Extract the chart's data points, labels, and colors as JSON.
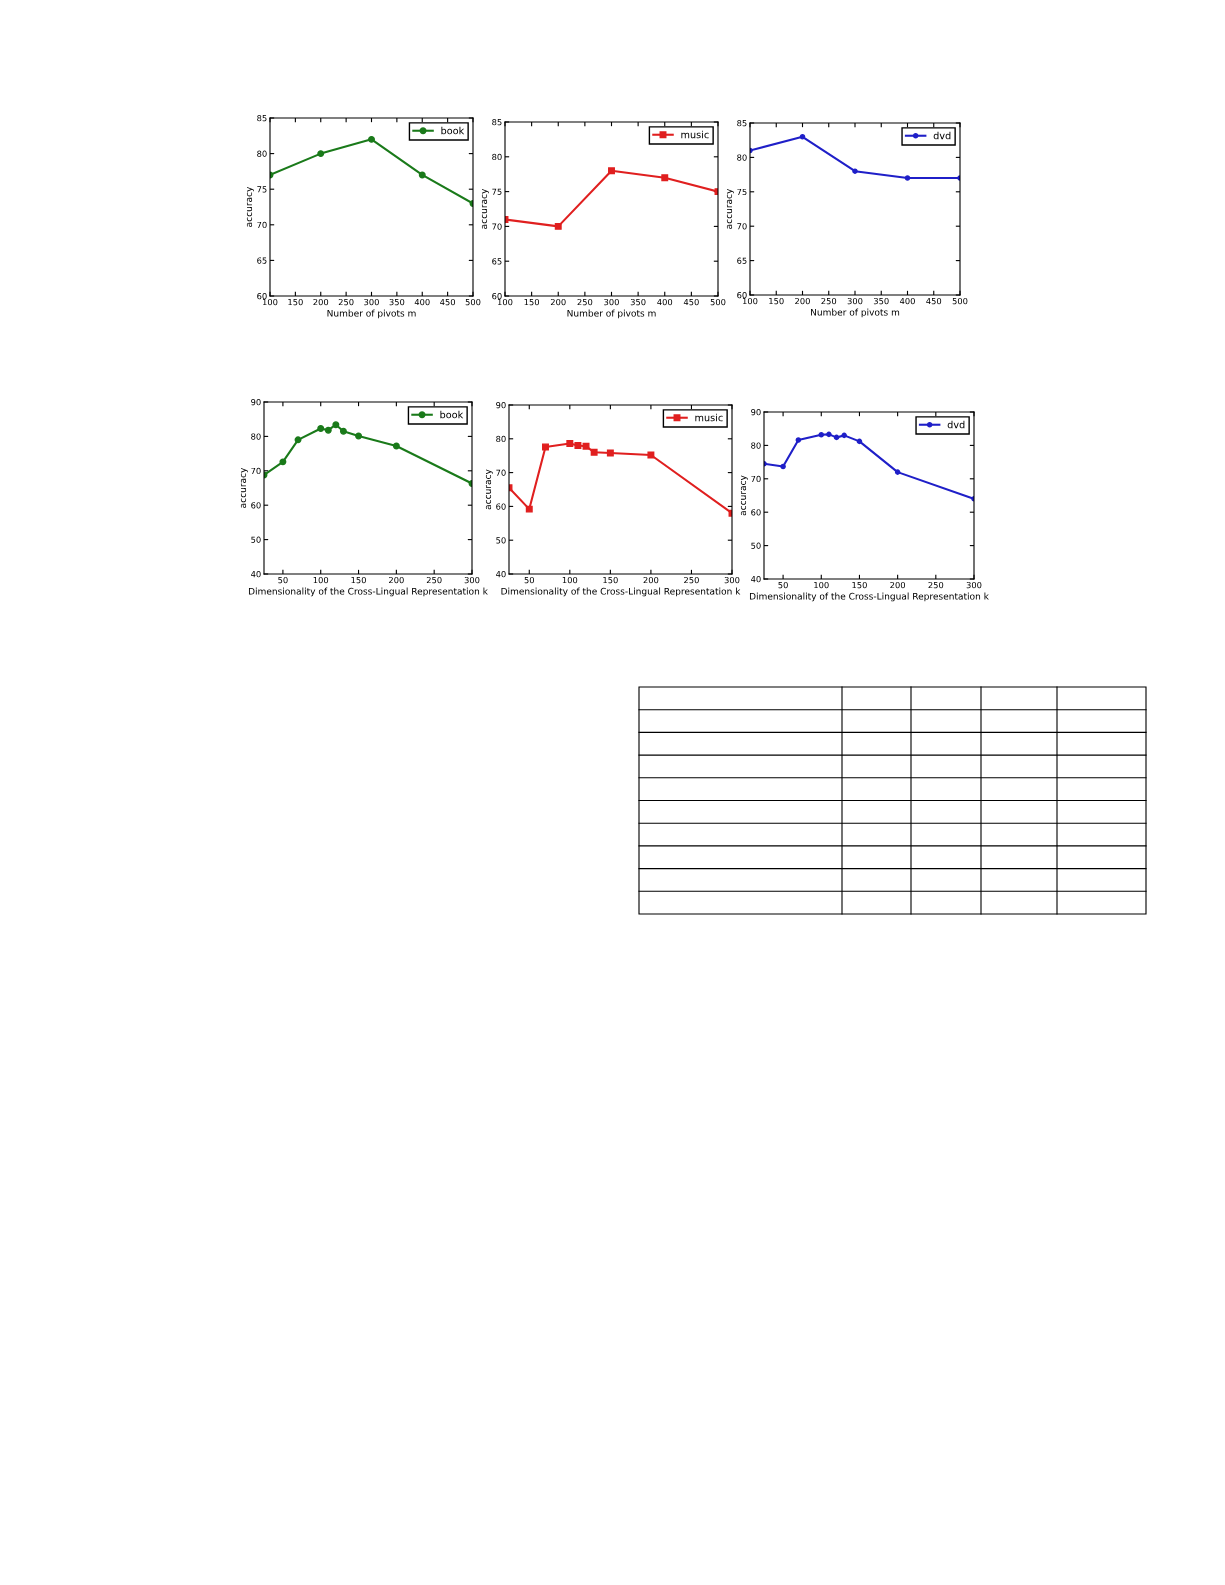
{
  "chart_data": [
    {
      "type": "line",
      "xlabel": "Number of pivots m",
      "ylabel": "accuracy",
      "x": [
        100,
        200,
        300,
        400,
        500
      ],
      "xlim": [
        100,
        500
      ],
      "xticks": [
        100,
        150,
        200,
        250,
        300,
        350,
        400,
        450,
        500
      ],
      "ylim": [
        60,
        85
      ],
      "yticks": [
        60,
        65,
        70,
        75,
        80,
        85
      ],
      "grid": false,
      "legend": "top right",
      "marker": "circle",
      "line_style": "solid",
      "series": [
        {
          "name": "book",
          "color": "#1a7a1a",
          "values": [
            77,
            80,
            82,
            77,
            73
          ]
        }
      ]
    },
    {
      "type": "line",
      "xlabel": "Number of pivots m",
      "ylabel": "accuracy",
      "x": [
        100,
        200,
        300,
        400,
        500
      ],
      "xlim": [
        100,
        500
      ],
      "xticks": [
        100,
        150,
        200,
        250,
        300,
        350,
        400,
        450,
        500
      ],
      "ylim": [
        60,
        85
      ],
      "yticks": [
        60,
        65,
        70,
        75,
        80,
        85
      ],
      "grid": false,
      "legend": "top right",
      "marker": "square",
      "line_style": "solid",
      "series": [
        {
          "name": "music",
          "color": "#e01f1f",
          "values": [
            71,
            70,
            78,
            77,
            75
          ]
        }
      ]
    },
    {
      "type": "line",
      "xlabel": "Number of pivots m",
      "ylabel": "accuracy",
      "x": [
        100,
        200,
        300,
        400,
        500
      ],
      "xlim": [
        100,
        500
      ],
      "xticks": [
        100,
        150,
        200,
        250,
        300,
        350,
        400,
        450,
        500
      ],
      "ylim": [
        60,
        85
      ],
      "yticks": [
        60,
        65,
        70,
        75,
        80,
        85
      ],
      "grid": false,
      "legend": "top right",
      "marker": "circle",
      "line_style": "solid",
      "series": [
        {
          "name": "dvd",
          "color": "#1f1fc8",
          "values": [
            81,
            83,
            78,
            77,
            77
          ]
        }
      ]
    },
    {
      "type": "line",
      "xlabel": "Dimensionality of the Cross-Lingual Representation k",
      "ylabel": "accuracy",
      "x": [
        25,
        50,
        70,
        100,
        110,
        120,
        130,
        150,
        200,
        300
      ],
      "xlim": [
        25,
        300
      ],
      "xticks": [
        50,
        100,
        150,
        200,
        250,
        300
      ],
      "ylim": [
        40,
        90
      ],
      "yticks": [
        40,
        50,
        60,
        70,
        80,
        90
      ],
      "grid": false,
      "legend": "top right",
      "marker": "circle",
      "line_style": "solid",
      "series": [
        {
          "name": "book",
          "color": "#1a7a1a",
          "values": [
            68.8,
            72.6,
            79,
            82.3,
            81.8,
            83.4,
            81.5,
            80.1,
            77.2,
            66.3
          ]
        }
      ]
    },
    {
      "type": "line",
      "xlabel": "Dimensionality of the Cross-Lingual Representation k",
      "ylabel": "accuracy",
      "x": [
        25,
        50,
        70,
        100,
        110,
        120,
        130,
        150,
        200,
        300
      ],
      "xlim": [
        25,
        300
      ],
      "xticks": [
        50,
        100,
        150,
        200,
        250,
        300
      ],
      "ylim": [
        40,
        90
      ],
      "yticks": [
        40,
        50,
        60,
        70,
        80,
        90
      ],
      "grid": false,
      "legend": "top right",
      "marker": "square",
      "line_style": "solid",
      "series": [
        {
          "name": "music",
          "color": "#e01f1f",
          "values": [
            65.5,
            59.2,
            77.6,
            78.6,
            78,
            77.8,
            76,
            75.8,
            75.2,
            58
          ]
        }
      ]
    },
    {
      "type": "line",
      "xlabel": "Dimensionality of the Cross-Lingual Representation k",
      "ylabel": "accuracy",
      "x": [
        25,
        50,
        70,
        100,
        110,
        120,
        130,
        150,
        200,
        300
      ],
      "xlim": [
        25,
        300
      ],
      "xticks": [
        50,
        100,
        150,
        200,
        250,
        300
      ],
      "ylim": [
        40,
        90
      ],
      "yticks": [
        40,
        50,
        60,
        70,
        80,
        90
      ],
      "grid": false,
      "legend": "top right",
      "marker": "circle",
      "line_style": "solid",
      "series": [
        {
          "name": "dvd",
          "color": "#1f1fc8",
          "values": [
            74.5,
            73.7,
            81.6,
            83.2,
            83.3,
            82.4,
            83,
            81.2,
            72,
            64
          ]
        }
      ]
    }
  ]
}
